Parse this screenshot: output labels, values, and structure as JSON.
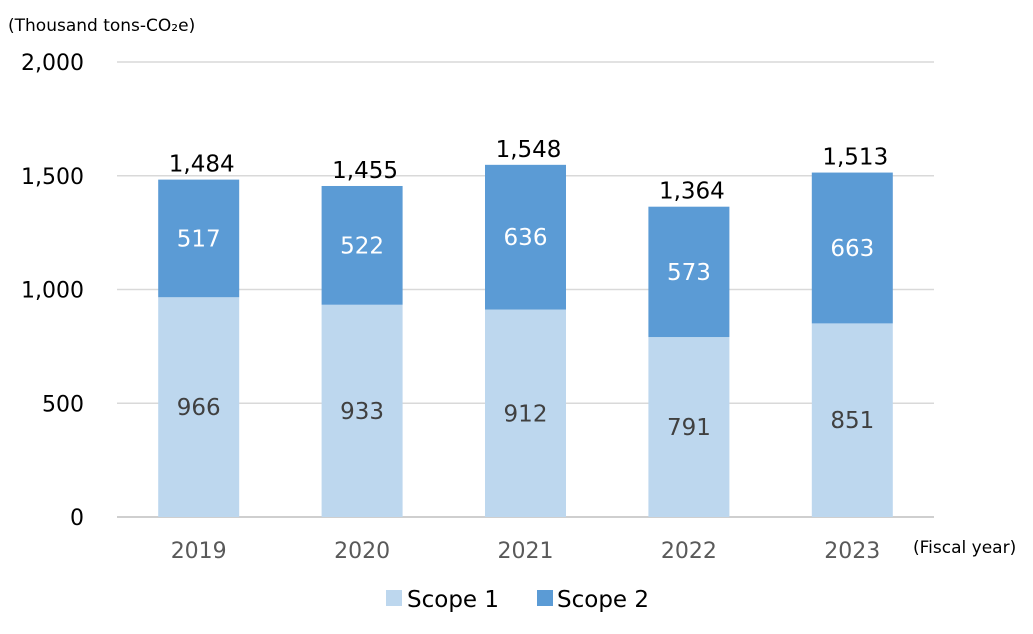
{
  "chart_data": {
    "type": "bar",
    "stacked": true,
    "y_unit_label": "(Thousand tons-CO₂e)",
    "x_unit_label": "(Fiscal year)",
    "categories": [
      "2019",
      "2020",
      "2021",
      "2022",
      "2023"
    ],
    "series": [
      {
        "name": "Scope 1",
        "values": [
          966,
          933,
          912,
          791,
          851
        ],
        "color": "#bdd7ee"
      },
      {
        "name": "Scope 2",
        "values": [
          517,
          522,
          636,
          573,
          663
        ],
        "color": "#5b9bd5"
      }
    ],
    "totals": [
      "1,484",
      "1,455",
      "1,548",
      "1,364",
      "1,513"
    ],
    "ylim": [
      0,
      2000
    ],
    "yticks": [
      "0",
      "500",
      "1,000",
      "1,500",
      "2,000"
    ],
    "grid": true,
    "legend_position": "bottom"
  }
}
